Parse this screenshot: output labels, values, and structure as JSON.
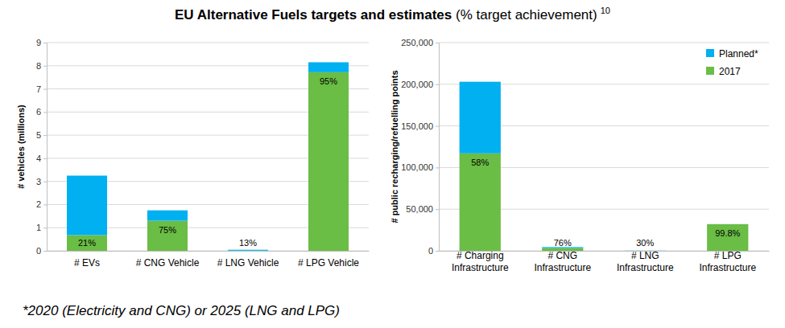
{
  "figure": {
    "title": "EU Alternative Fuels targets and estimates",
    "subtitle": "(% target achievement)",
    "footnote_ref": "10",
    "footnote": "*2020 (Electricity and CNG) or 2025 (LNG and LPG)"
  },
  "chart_data": [
    {
      "type": "bar",
      "stacked": true,
      "grid": true,
      "y_label": "# vehicles (millions)",
      "categories": [
        "# EVs",
        "# CNG Vehicle",
        "# LNG Vehicle",
        "# LPG Vehicle"
      ],
      "ylim": [
        0,
        9
      ],
      "yticks": [
        0,
        1,
        2,
        3,
        4,
        5,
        6,
        7,
        8,
        9
      ],
      "series": [
        {
          "name": "2017",
          "color": "#6abd45",
          "values": [
            0.68,
            1.3,
            0.006,
            7.72
          ]
        },
        {
          "name": "Planned*",
          "color": "#00b0f0",
          "values": [
            2.57,
            0.45,
            0.04,
            0.43
          ]
        }
      ],
      "annotations": [
        "21%",
        "75%",
        "13%",
        "95%"
      ]
    },
    {
      "type": "bar",
      "stacked": true,
      "grid": true,
      "legend": "upper right",
      "y_label": "# public recharging/refuelling points",
      "categories": [
        "# Charging Infrastructure",
        "# CNG Infrastructure",
        "# LNG Infrastructure",
        "# LPG Infrastructure"
      ],
      "ylim": [
        0,
        250000
      ],
      "yticks": [
        0,
        {
          "value": 50000,
          "label": "50,000"
        },
        {
          "value": 100000,
          "label": "100,000"
        },
        {
          "value": 150000,
          "label": "150,000"
        },
        {
          "value": 200000,
          "label": "200,000"
        },
        {
          "value": 250000,
          "label": "250,000"
        }
      ],
      "series": [
        {
          "name": "2017",
          "color": "#6abd45",
          "values": [
            117000,
            3400,
            60,
            32000
          ]
        },
        {
          "name": "Planned*",
          "color": "#00b0f0",
          "values": [
            86000,
            1100,
            140,
            64
          ]
        }
      ],
      "annotations": [
        "58%",
        "76%",
        "30%",
        "99.8%"
      ]
    }
  ]
}
